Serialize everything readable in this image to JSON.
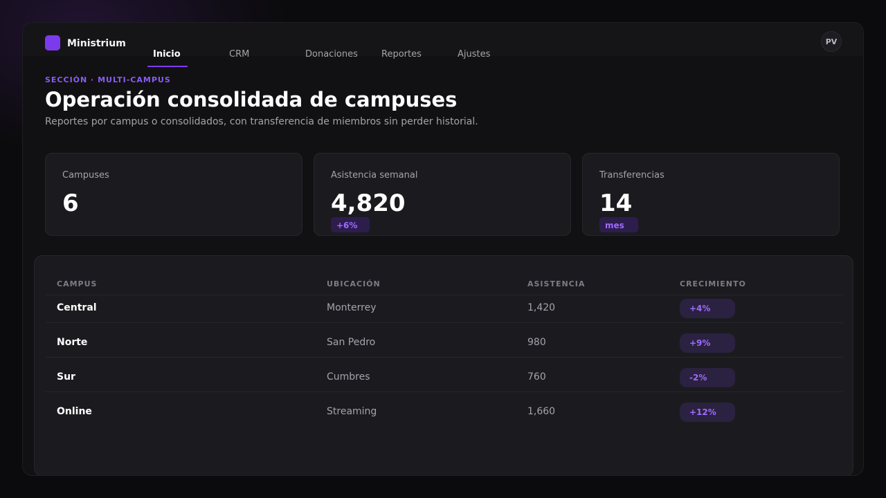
{
  "app": {
    "brand": "Ministrium",
    "avatar_initials": "PV"
  },
  "nav": {
    "items": [
      {
        "label": "Inicio",
        "active": true
      },
      {
        "label": "CRM",
        "active": false
      },
      {
        "label": "Donaciones",
        "active": false
      },
      {
        "label": "Reportes",
        "active": false
      },
      {
        "label": "Ajustes",
        "active": false
      }
    ]
  },
  "header": {
    "eyebrow": "SECCIÓN · MULTI-CAMPUS",
    "title": "Operación consolidada de campuses",
    "subtitle": "Reportes por campus o consolidados, con transferencia de miembros sin perder historial."
  },
  "stats": [
    {
      "label": "Campuses",
      "value": "6",
      "badge": ""
    },
    {
      "label": "Asistencia semanal",
      "value": "4,820",
      "badge": "+6%"
    },
    {
      "label": "Transferencias",
      "value": "14",
      "badge": "mes"
    }
  ],
  "table": {
    "headers": [
      "CAMPUS",
      "UBICACIÓN",
      "ASISTENCIA",
      "CRECIMIENTO"
    ],
    "rows": [
      {
        "campus": "Central",
        "location": "Monterrey",
        "attendance": "1,420",
        "growth": "+4%"
      },
      {
        "campus": "Norte",
        "location": "San Pedro",
        "attendance": "980",
        "growth": "+9%"
      },
      {
        "campus": "Sur",
        "location": "Cumbres",
        "attendance": "760",
        "growth": "-2%"
      },
      {
        "campus": "Online",
        "location": "Streaming",
        "attendance": "1,660",
        "growth": "+12%"
      }
    ]
  },
  "colors": {
    "accent": "#7c3aed",
    "badge_bg": "#2d1d4d",
    "badge_text": "#9d6bff"
  }
}
